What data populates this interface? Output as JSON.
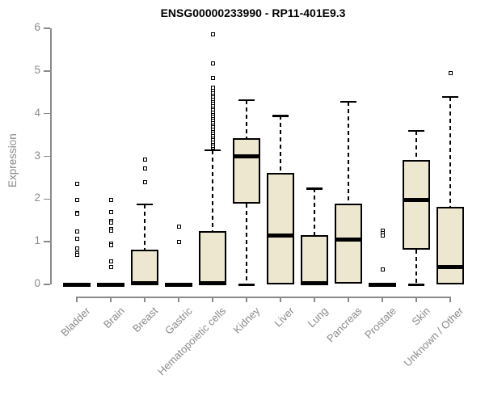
{
  "chart_data": {
    "type": "boxplot",
    "title": "ENSG00000233990 - RP11-401E9.3",
    "ylabel": "Expression",
    "xlabel": "",
    "ylim": [
      0,
      6
    ],
    "yticks": [
      0,
      1,
      2,
      3,
      4,
      5,
      6
    ],
    "grid": false,
    "legend": "none",
    "colors": {
      "box_fill": "#EDE7CF",
      "box_border": "#000000",
      "median": "#000000",
      "whisker": "#000000",
      "axis": "#8a8a8a",
      "tick_text": "#8a8a8a",
      "title_text": "#000000"
    },
    "categories": [
      "Bladder",
      "Brain",
      "Breast",
      "Gastric",
      "Hematopoietic cells",
      "Kidney",
      "Liver",
      "Lung",
      "Pancreas",
      "Prostate",
      "Skin",
      "Unknown / Other"
    ],
    "series": [
      {
        "category": "Bladder",
        "q1": 0,
        "median": 0,
        "q3": 0,
        "whisker_low": 0,
        "whisker_high": 0,
        "outliers": [
          2.36,
          1.97,
          1.68,
          1.65,
          1.24,
          1.07,
          0.85,
          0.72,
          0.69
        ]
      },
      {
        "category": "Brain",
        "q1": 0,
        "median": 0,
        "q3": 0,
        "whisker_low": 0,
        "whisker_high": 0,
        "outliers": [
          1.97,
          1.7,
          1.48,
          1.44,
          1.29,
          1.25,
          0.95,
          0.91,
          0.53,
          0.4
        ]
      },
      {
        "category": "Breast",
        "q1": 0,
        "median": 0.02,
        "q3": 0.82,
        "whisker_low": 0,
        "whisker_high": 1.88,
        "outliers": [
          2.92,
          2.72,
          2.4
        ]
      },
      {
        "category": "Gastric",
        "q1": 0,
        "median": 0,
        "q3": 0,
        "whisker_low": 0,
        "whisker_high": 0,
        "outliers": [
          1.35,
          1.0
        ]
      },
      {
        "category": "Hematopoietic cells",
        "q1": 0,
        "median": 0.02,
        "q3": 1.25,
        "whisker_low": 0,
        "whisker_high": 3.15,
        "outliers": [
          3.2,
          3.25,
          3.3,
          3.35,
          3.4,
          3.45,
          3.5,
          3.55,
          3.6,
          3.65,
          3.7,
          3.75,
          3.8,
          3.85,
          3.9,
          3.95,
          4.0,
          4.05,
          4.1,
          4.15,
          4.2,
          4.25,
          4.3,
          4.35,
          4.4,
          4.45,
          4.5,
          4.55,
          4.6,
          4.83,
          5.17,
          5.86
        ]
      },
      {
        "category": "Kidney",
        "q1": 1.9,
        "median": 3.0,
        "q3": 3.43,
        "whisker_low": 0,
        "whisker_high": 4.32,
        "outliers": []
      },
      {
        "category": "Liver",
        "q1": 0,
        "median": 1.15,
        "q3": 2.62,
        "whisker_low": 0,
        "whisker_high": 3.95,
        "outliers": []
      },
      {
        "category": "Lung",
        "q1": 0,
        "median": 0.03,
        "q3": 1.15,
        "whisker_low": 0,
        "whisker_high": 2.25,
        "outliers": []
      },
      {
        "category": "Pancreas",
        "q1": 0.02,
        "median": 1.05,
        "q3": 1.9,
        "whisker_low": 0.02,
        "whisker_high": 4.28,
        "outliers": []
      },
      {
        "category": "Prostate",
        "q1": 0,
        "median": 0,
        "q3": 0,
        "whisker_low": 0,
        "whisker_high": 0,
        "outliers": [
          1.25,
          1.2,
          1.15,
          0.35
        ]
      },
      {
        "category": "Skin",
        "q1": 0.82,
        "median": 1.98,
        "q3": 2.92,
        "whisker_low": 0,
        "whisker_high": 3.6,
        "outliers": []
      },
      {
        "category": "Unknown / Other",
        "q1": 0,
        "median": 0.4,
        "q3": 1.82,
        "whisker_low": 0,
        "whisker_high": 4.4,
        "outliers": [
          4.95
        ]
      }
    ]
  }
}
